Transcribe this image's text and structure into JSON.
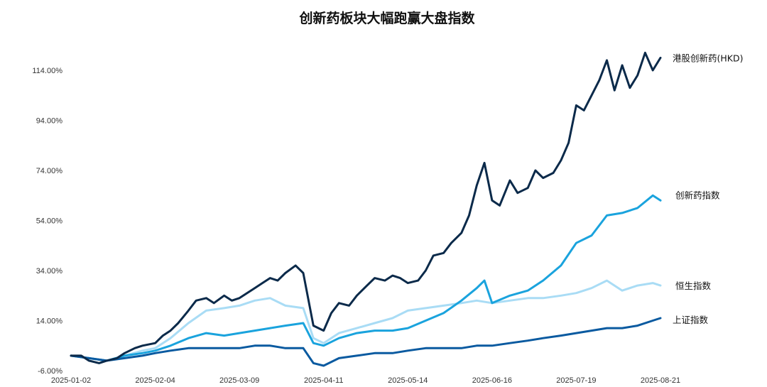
{
  "chart_data": {
    "type": "line",
    "title": "创新药板块大幅跑赢大盘指数",
    "xlabel": "",
    "ylabel": "",
    "ylim": [
      -6,
      124
    ],
    "y_ticks": [
      "114.00%",
      "94.00%",
      "74.00%",
      "54.00%",
      "34.00%",
      "14.00%",
      "-6.00%"
    ],
    "y_tick_values": [
      114,
      94,
      74,
      54,
      34,
      14,
      -6
    ],
    "x_ticks": [
      "2025-01-02",
      "2025-02-04",
      "2025-03-09",
      "2025-04-11",
      "2025-05-14",
      "2025-06-16",
      "2025-07-19",
      "2025-08-21"
    ],
    "grid": false,
    "legend": "inline-right",
    "series": [
      {
        "name": "港股创新药(HKD)",
        "color": "#0b2a4a",
        "points": [
          [
            "2025-01-02",
            0
          ],
          [
            "2025-01-06",
            0
          ],
          [
            "2025-01-09",
            -2
          ],
          [
            "2025-01-13",
            -3
          ],
          [
            "2025-01-16",
            -2
          ],
          [
            "2025-01-20",
            -1
          ],
          [
            "2025-01-23",
            1
          ],
          [
            "2025-01-27",
            3
          ],
          [
            "2025-01-30",
            4
          ],
          [
            "2025-02-04",
            5
          ],
          [
            "2025-02-07",
            8
          ],
          [
            "2025-02-10",
            10
          ],
          [
            "2025-02-13",
            13
          ],
          [
            "2025-02-17",
            18
          ],
          [
            "2025-02-20",
            22
          ],
          [
            "2025-02-24",
            23
          ],
          [
            "2025-02-27",
            21
          ],
          [
            "2025-03-03",
            24
          ],
          [
            "2025-03-06",
            22
          ],
          [
            "2025-03-09",
            23
          ],
          [
            "2025-03-12",
            25
          ],
          [
            "2025-03-15",
            27
          ],
          [
            "2025-03-18",
            29
          ],
          [
            "2025-03-21",
            31
          ],
          [
            "2025-03-24",
            30
          ],
          [
            "2025-03-27",
            33
          ],
          [
            "2025-03-31",
            36
          ],
          [
            "2025-04-03",
            33
          ],
          [
            "2025-04-07",
            12
          ],
          [
            "2025-04-11",
            10
          ],
          [
            "2025-04-14",
            17
          ],
          [
            "2025-04-17",
            21
          ],
          [
            "2025-04-21",
            20
          ],
          [
            "2025-04-24",
            24
          ],
          [
            "2025-04-28",
            28
          ],
          [
            "2025-05-01",
            31
          ],
          [
            "2025-05-05",
            30
          ],
          [
            "2025-05-08",
            32
          ],
          [
            "2025-05-11",
            31
          ],
          [
            "2025-05-14",
            29
          ],
          [
            "2025-05-18",
            30
          ],
          [
            "2025-05-21",
            34
          ],
          [
            "2025-05-24",
            40
          ],
          [
            "2025-05-28",
            41
          ],
          [
            "2025-05-31",
            45
          ],
          [
            "2025-06-04",
            49
          ],
          [
            "2025-06-07",
            56
          ],
          [
            "2025-06-10",
            68
          ],
          [
            "2025-06-13",
            77
          ],
          [
            "2025-06-16",
            62
          ],
          [
            "2025-06-19",
            60
          ],
          [
            "2025-06-23",
            70
          ],
          [
            "2025-06-26",
            65
          ],
          [
            "2025-06-30",
            67
          ],
          [
            "2025-07-03",
            74
          ],
          [
            "2025-07-06",
            71
          ],
          [
            "2025-07-10",
            73
          ],
          [
            "2025-07-13",
            78
          ],
          [
            "2025-07-16",
            85
          ],
          [
            "2025-07-19",
            100
          ],
          [
            "2025-07-22",
            98
          ],
          [
            "2025-07-25",
            104
          ],
          [
            "2025-07-28",
            110
          ],
          [
            "2025-07-31",
            118
          ],
          [
            "2025-08-03",
            106
          ],
          [
            "2025-08-06",
            116
          ],
          [
            "2025-08-09",
            107
          ],
          [
            "2025-08-12",
            112
          ],
          [
            "2025-08-15",
            121
          ],
          [
            "2025-08-18",
            114
          ],
          [
            "2025-08-21",
            119
          ]
        ]
      },
      {
        "name": "创新药指数",
        "color": "#1aa3dd",
        "points": [
          [
            "2025-01-02",
            0
          ],
          [
            "2025-01-09",
            -1
          ],
          [
            "2025-01-16",
            -2
          ],
          [
            "2025-01-23",
            0
          ],
          [
            "2025-01-30",
            1
          ],
          [
            "2025-02-04",
            2
          ],
          [
            "2025-02-10",
            4
          ],
          [
            "2025-02-17",
            7
          ],
          [
            "2025-02-24",
            9
          ],
          [
            "2025-03-03",
            8
          ],
          [
            "2025-03-09",
            9
          ],
          [
            "2025-03-15",
            10
          ],
          [
            "2025-03-21",
            11
          ],
          [
            "2025-03-27",
            12
          ],
          [
            "2025-04-03",
            13
          ],
          [
            "2025-04-07",
            5
          ],
          [
            "2025-04-11",
            4
          ],
          [
            "2025-04-17",
            7
          ],
          [
            "2025-04-24",
            9
          ],
          [
            "2025-05-01",
            10
          ],
          [
            "2025-05-08",
            10
          ],
          [
            "2025-05-14",
            11
          ],
          [
            "2025-05-21",
            14
          ],
          [
            "2025-05-28",
            17
          ],
          [
            "2025-06-04",
            22
          ],
          [
            "2025-06-10",
            27
          ],
          [
            "2025-06-13",
            30
          ],
          [
            "2025-06-16",
            21
          ],
          [
            "2025-06-23",
            24
          ],
          [
            "2025-06-30",
            26
          ],
          [
            "2025-07-06",
            30
          ],
          [
            "2025-07-13",
            36
          ],
          [
            "2025-07-19",
            45
          ],
          [
            "2025-07-25",
            48
          ],
          [
            "2025-07-31",
            56
          ],
          [
            "2025-08-06",
            57
          ],
          [
            "2025-08-12",
            59
          ],
          [
            "2025-08-18",
            64
          ],
          [
            "2025-08-21",
            62
          ]
        ]
      },
      {
        "name": "恒生指数",
        "color": "#a9dcf5",
        "points": [
          [
            "2025-01-02",
            0
          ],
          [
            "2025-01-09",
            -1
          ],
          [
            "2025-01-16",
            -2
          ],
          [
            "2025-01-23",
            0
          ],
          [
            "2025-01-30",
            2
          ],
          [
            "2025-02-04",
            3
          ],
          [
            "2025-02-10",
            7
          ],
          [
            "2025-02-17",
            13
          ],
          [
            "2025-02-24",
            18
          ],
          [
            "2025-03-03",
            19
          ],
          [
            "2025-03-09",
            20
          ],
          [
            "2025-03-15",
            22
          ],
          [
            "2025-03-21",
            23
          ],
          [
            "2025-03-27",
            20
          ],
          [
            "2025-04-03",
            19
          ],
          [
            "2025-04-07",
            7
          ],
          [
            "2025-04-11",
            5
          ],
          [
            "2025-04-17",
            9
          ],
          [
            "2025-04-24",
            11
          ],
          [
            "2025-05-01",
            13
          ],
          [
            "2025-05-08",
            15
          ],
          [
            "2025-05-14",
            18
          ],
          [
            "2025-05-21",
            19
          ],
          [
            "2025-05-28",
            20
          ],
          [
            "2025-06-04",
            21
          ],
          [
            "2025-06-10",
            22
          ],
          [
            "2025-06-16",
            21
          ],
          [
            "2025-06-23",
            22
          ],
          [
            "2025-06-30",
            23
          ],
          [
            "2025-07-06",
            23
          ],
          [
            "2025-07-13",
            24
          ],
          [
            "2025-07-19",
            25
          ],
          [
            "2025-07-25",
            27
          ],
          [
            "2025-07-31",
            30
          ],
          [
            "2025-08-06",
            26
          ],
          [
            "2025-08-12",
            28
          ],
          [
            "2025-08-18",
            29
          ],
          [
            "2025-08-21",
            28
          ]
        ]
      },
      {
        "name": "上证指数",
        "color": "#0a5aa0",
        "points": [
          [
            "2025-01-02",
            0
          ],
          [
            "2025-01-09",
            -1
          ],
          [
            "2025-01-16",
            -2
          ],
          [
            "2025-01-23",
            -1
          ],
          [
            "2025-01-30",
            0
          ],
          [
            "2025-02-04",
            1
          ],
          [
            "2025-02-10",
            2
          ],
          [
            "2025-02-17",
            3
          ],
          [
            "2025-02-24",
            3
          ],
          [
            "2025-03-03",
            3
          ],
          [
            "2025-03-09",
            3
          ],
          [
            "2025-03-15",
            4
          ],
          [
            "2025-03-21",
            4
          ],
          [
            "2025-03-27",
            3
          ],
          [
            "2025-04-03",
            3
          ],
          [
            "2025-04-07",
            -3
          ],
          [
            "2025-04-11",
            -4
          ],
          [
            "2025-04-17",
            -1
          ],
          [
            "2025-04-24",
            0
          ],
          [
            "2025-05-01",
            1
          ],
          [
            "2025-05-08",
            1
          ],
          [
            "2025-05-14",
            2
          ],
          [
            "2025-05-21",
            3
          ],
          [
            "2025-05-28",
            3
          ],
          [
            "2025-06-04",
            3
          ],
          [
            "2025-06-10",
            4
          ],
          [
            "2025-06-16",
            4
          ],
          [
            "2025-06-23",
            5
          ],
          [
            "2025-06-30",
            6
          ],
          [
            "2025-07-06",
            7
          ],
          [
            "2025-07-13",
            8
          ],
          [
            "2025-07-19",
            9
          ],
          [
            "2025-07-25",
            10
          ],
          [
            "2025-07-31",
            11
          ],
          [
            "2025-08-06",
            11
          ],
          [
            "2025-08-12",
            12
          ],
          [
            "2025-08-18",
            14
          ],
          [
            "2025-08-21",
            15
          ]
        ]
      }
    ]
  }
}
